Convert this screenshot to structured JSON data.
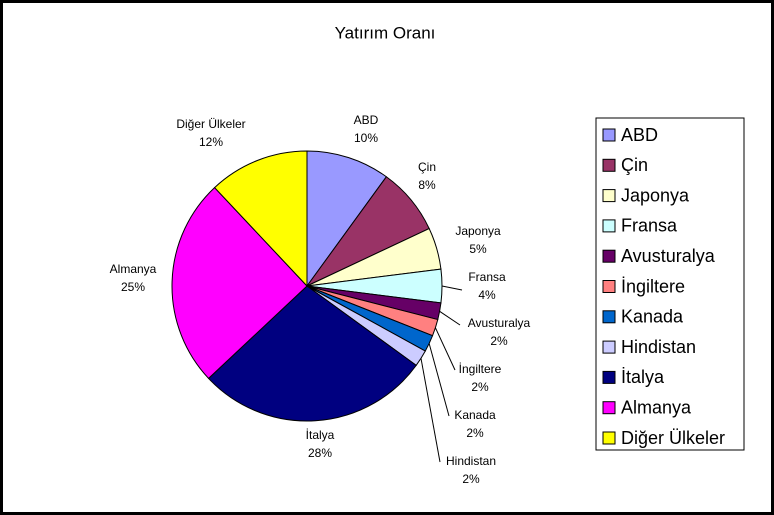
{
  "chart_data": {
    "type": "pie",
    "title": "Yatırım Oranı",
    "categories": [
      "ABD",
      "Çin",
      "Japonya",
      "Fransa",
      "Avusturalya",
      "İngiltere",
      "Kanada",
      "Hindistan",
      "İtalya",
      "Almanya",
      "Diğer Ülkeler"
    ],
    "values": [
      10,
      8,
      5,
      4,
      2,
      2,
      2,
      2,
      28,
      25,
      12
    ],
    "value_labels": [
      "10%",
      "8%",
      "5%",
      "4%",
      "2%",
      "2%",
      "2%",
      "2%",
      "28%",
      "25%",
      "12%"
    ],
    "colors": [
      "#9999ff",
      "#993366",
      "#ffffcc",
      "#ccffff",
      "#660066",
      "#ff8080",
      "#0066cc",
      "#ccccff",
      "#000080",
      "#ff00ff",
      "#ffff00"
    ],
    "legend": "right"
  }
}
